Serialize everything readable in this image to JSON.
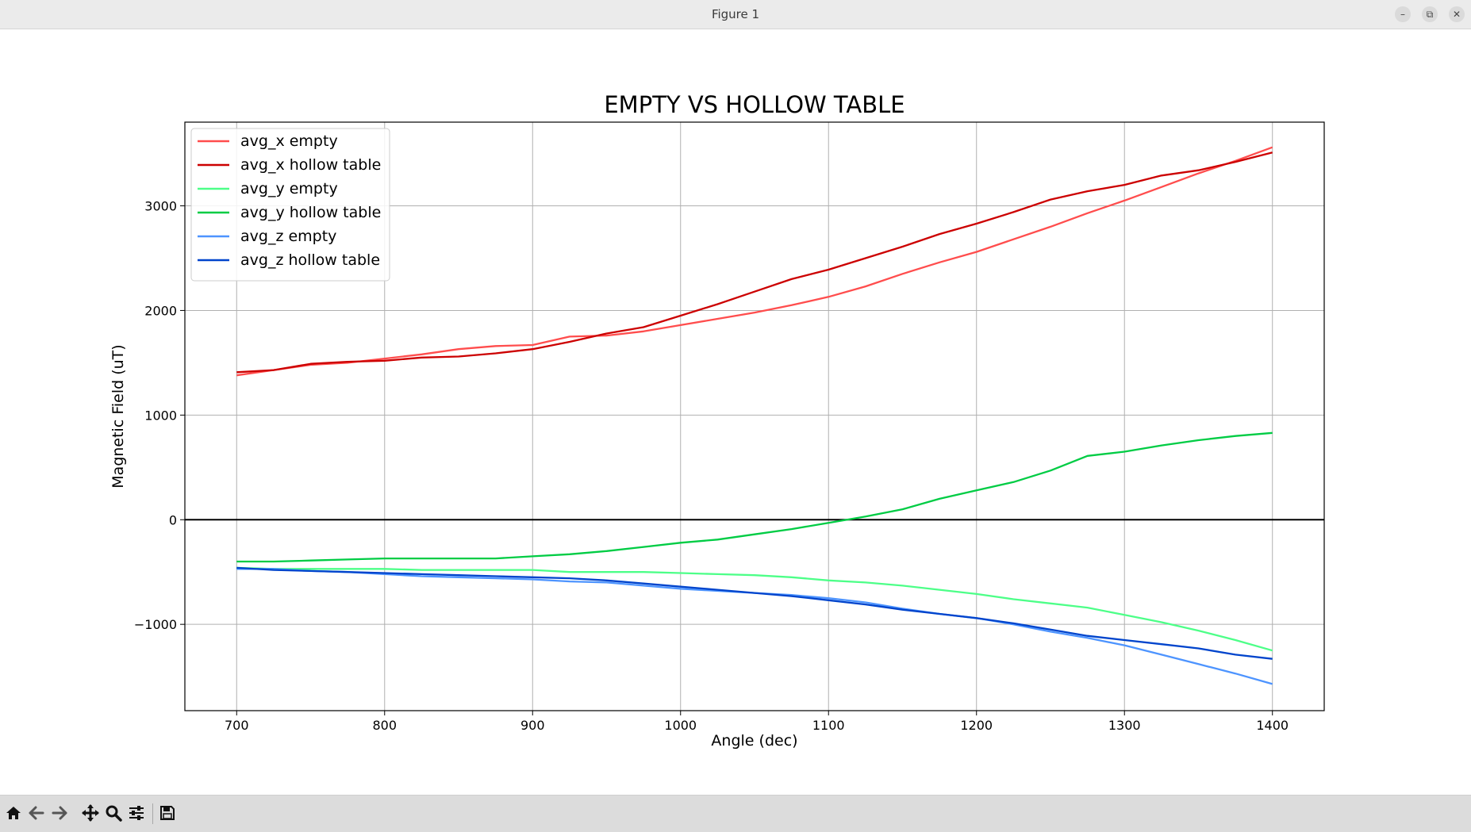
{
  "window": {
    "title": "Figure 1",
    "controls": {
      "minimize": "–",
      "maximize": "⧉",
      "close": "✕"
    }
  },
  "toolbar": {
    "icons": [
      "home-icon",
      "back-arrow-icon",
      "forward-arrow-icon",
      "pan-icon",
      "zoom-icon",
      "configure-subplots-icon",
      "save-icon"
    ]
  },
  "chart_data": {
    "type": "line",
    "title": "EMPTY VS HOLLOW TABLE",
    "xlabel": "Angle (dec)",
    "ylabel": "Magnetic Field (uT)",
    "xlim": [
      665,
      1435
    ],
    "ylim": [
      -1825,
      3800
    ],
    "xticks": [
      700,
      800,
      900,
      1000,
      1100,
      1200,
      1300,
      1400
    ],
    "yticks": [
      -1000,
      0,
      1000,
      2000,
      3000
    ],
    "ytick_labels": [
      "−1000",
      "0",
      "1000",
      "2000",
      "3000"
    ],
    "grid": true,
    "zero_line": true,
    "legend_position": "upper left",
    "x": [
      700,
      725,
      750,
      775,
      800,
      825,
      850,
      875,
      900,
      925,
      950,
      975,
      1000,
      1025,
      1050,
      1075,
      1100,
      1125,
      1150,
      1175,
      1200,
      1225,
      1250,
      1275,
      1300,
      1325,
      1350,
      1375,
      1400
    ],
    "series": [
      {
        "name": "avg_x empty",
        "color": "#ff4d4d",
        "values": [
          1380,
          1430,
          1480,
          1500,
          1540,
          1580,
          1630,
          1660,
          1670,
          1750,
          1760,
          1800,
          1860,
          1920,
          1980,
          2050,
          2130,
          2230,
          2350,
          2460,
          2560,
          2680,
          2800,
          2930,
          3050,
          3180,
          3310,
          3430,
          3560
        ]
      },
      {
        "name": "avg_x hollow table",
        "color": "#cc0000",
        "values": [
          1410,
          1430,
          1490,
          1510,
          1520,
          1550,
          1560,
          1590,
          1630,
          1700,
          1780,
          1840,
          1950,
          2060,
          2180,
          2300,
          2390,
          2500,
          2610,
          2730,
          2830,
          2940,
          3060,
          3140,
          3200,
          3290,
          3340,
          3420,
          3510
        ]
      },
      {
        "name": "avg_y empty",
        "color": "#4dff88",
        "values": [
          -460,
          -470,
          -470,
          -470,
          -470,
          -480,
          -480,
          -480,
          -480,
          -500,
          -500,
          -500,
          -510,
          -520,
          -530,
          -550,
          -580,
          -600,
          -630,
          -670,
          -710,
          -760,
          -800,
          -840,
          -910,
          -980,
          -1060,
          -1150,
          -1250
        ]
      },
      {
        "name": "avg_y hollow table",
        "color": "#00cc44",
        "values": [
          -400,
          -400,
          -390,
          -380,
          -370,
          -370,
          -370,
          -370,
          -350,
          -330,
          -300,
          -260,
          -220,
          -190,
          -140,
          -90,
          -30,
          30,
          100,
          200,
          280,
          360,
          470,
          610,
          650,
          710,
          760,
          800,
          830
        ]
      },
      {
        "name": "avg_z empty",
        "color": "#4d94ff",
        "values": [
          -470,
          -470,
          -490,
          -500,
          -520,
          -540,
          -550,
          -560,
          -570,
          -590,
          -600,
          -630,
          -660,
          -680,
          -700,
          -720,
          -750,
          -790,
          -850,
          -900,
          -940,
          -1000,
          -1070,
          -1130,
          -1200,
          -1290,
          -1380,
          -1470,
          -1570
        ]
      },
      {
        "name": "avg_z hollow table",
        "color": "#0044cc",
        "values": [
          -460,
          -480,
          -490,
          -500,
          -510,
          -520,
          -530,
          -540,
          -550,
          -560,
          -580,
          -610,
          -640,
          -670,
          -700,
          -730,
          -770,
          -810,
          -860,
          -900,
          -940,
          -990,
          -1050,
          -1110,
          -1150,
          -1190,
          -1230,
          -1290,
          -1330
        ]
      }
    ]
  }
}
